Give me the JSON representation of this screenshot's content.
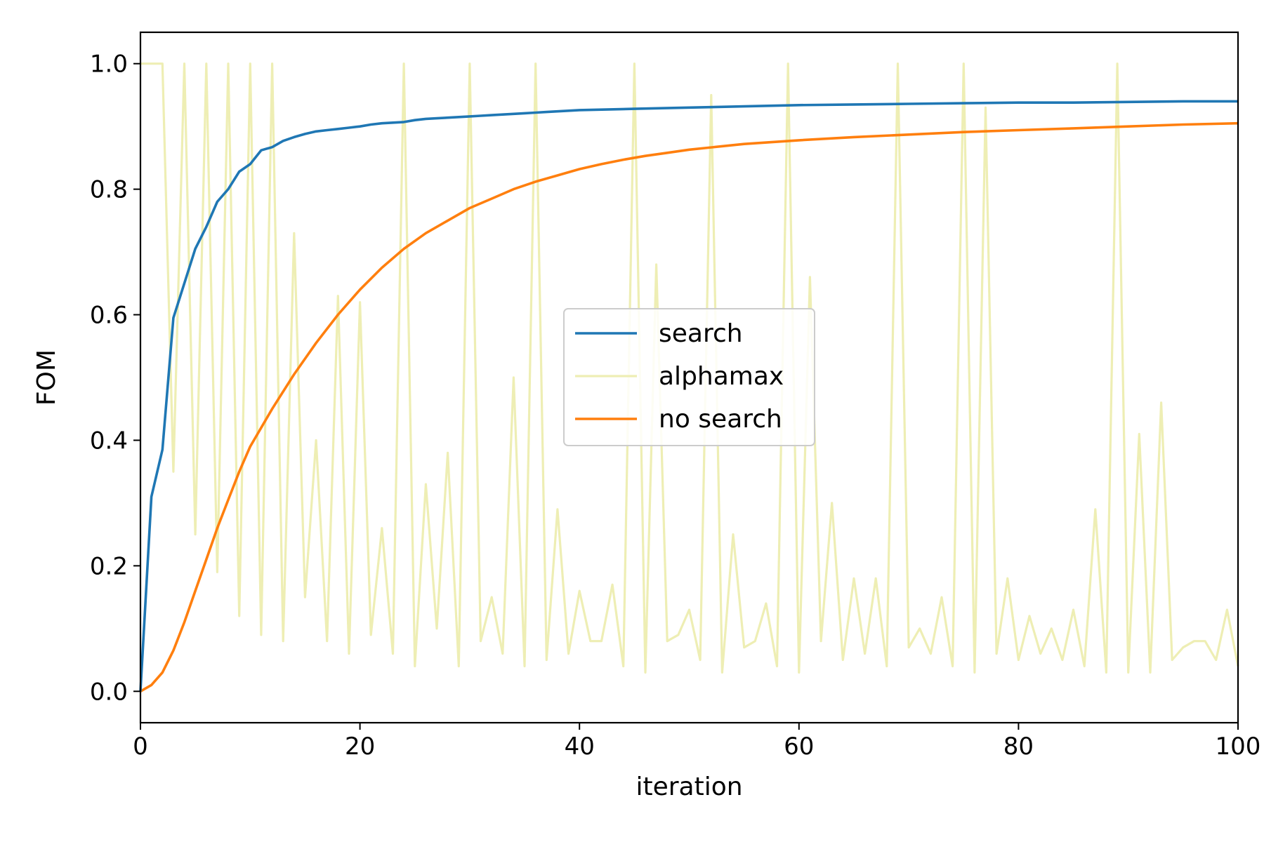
{
  "chart_data": {
    "type": "line",
    "title": "",
    "xlabel": "iteration",
    "ylabel": "FOM",
    "xlim": [
      0,
      100
    ],
    "ylim": [
      -0.05,
      1.05
    ],
    "xticks": [
      0,
      20,
      40,
      60,
      80,
      100
    ],
    "yticks": [
      0.0,
      0.2,
      0.4,
      0.6,
      0.8,
      1.0
    ],
    "xtick_labels": [
      "0",
      "20",
      "40",
      "60",
      "80",
      "100"
    ],
    "ytick_labels": [
      "0.0",
      "0.2",
      "0.4",
      "0.6",
      "0.8",
      "1.0"
    ],
    "grid": false,
    "legend_position": "center",
    "series": [
      {
        "name": "search",
        "color": "#1f77b4",
        "x": [
          0,
          1,
          2,
          3,
          4,
          5,
          6,
          7,
          8,
          9,
          10,
          11,
          12,
          13,
          14,
          15,
          16,
          17,
          18,
          19,
          20,
          21,
          22,
          23,
          24,
          25,
          26,
          27,
          28,
          29,
          30,
          31,
          32,
          33,
          34,
          35,
          36,
          37,
          38,
          39,
          40,
          45,
          50,
          55,
          60,
          65,
          70,
          75,
          80,
          85,
          90,
          95,
          100
        ],
        "y": [
          0.0,
          0.31,
          0.385,
          0.595,
          0.65,
          0.705,
          0.74,
          0.78,
          0.8,
          0.828,
          0.84,
          0.862,
          0.867,
          0.877,
          0.883,
          0.888,
          0.892,
          0.894,
          0.896,
          0.898,
          0.9,
          0.903,
          0.905,
          0.906,
          0.907,
          0.91,
          0.912,
          0.913,
          0.914,
          0.915,
          0.916,
          0.917,
          0.918,
          0.919,
          0.92,
          0.921,
          0.922,
          0.923,
          0.924,
          0.925,
          0.926,
          0.928,
          0.93,
          0.932,
          0.934,
          0.935,
          0.936,
          0.937,
          0.938,
          0.938,
          0.939,
          0.94,
          0.94
        ]
      },
      {
        "name": "alphamax",
        "color": "#eeeeb4",
        "x": [
          0,
          1,
          2,
          3,
          4,
          5,
          6,
          7,
          8,
          9,
          10,
          11,
          12,
          13,
          14,
          15,
          16,
          17,
          18,
          19,
          20,
          21,
          22,
          23,
          24,
          25,
          26,
          27,
          28,
          29,
          30,
          31,
          32,
          33,
          34,
          35,
          36,
          37,
          38,
          39,
          40,
          41,
          42,
          43,
          44,
          45,
          46,
          47,
          48,
          49,
          50,
          51,
          52,
          53,
          54,
          55,
          56,
          57,
          58,
          59,
          60,
          61,
          62,
          63,
          64,
          65,
          66,
          67,
          68,
          69,
          70,
          71,
          72,
          73,
          74,
          75,
          76,
          77,
          78,
          79,
          80,
          81,
          82,
          83,
          84,
          85,
          86,
          87,
          88,
          89,
          90,
          91,
          92,
          93,
          94,
          95,
          96,
          97,
          98,
          99,
          100
        ],
        "y": [
          1.0,
          1.0,
          1.0,
          0.35,
          1.0,
          0.25,
          1.0,
          0.19,
          1.0,
          0.12,
          1.0,
          0.09,
          1.0,
          0.08,
          0.73,
          0.15,
          0.4,
          0.08,
          0.63,
          0.06,
          0.62,
          0.09,
          0.26,
          0.06,
          1.0,
          0.04,
          0.33,
          0.1,
          0.38,
          0.04,
          1.0,
          0.08,
          0.15,
          0.06,
          0.5,
          0.04,
          1.0,
          0.05,
          0.29,
          0.06,
          0.16,
          0.08,
          0.08,
          0.17,
          0.04,
          1.0,
          0.03,
          0.68,
          0.08,
          0.09,
          0.13,
          0.05,
          0.95,
          0.03,
          0.25,
          0.07,
          0.08,
          0.14,
          0.04,
          1.0,
          0.03,
          0.66,
          0.08,
          0.3,
          0.05,
          0.18,
          0.06,
          0.18,
          0.04,
          1.0,
          0.07,
          0.1,
          0.06,
          0.15,
          0.04,
          1.0,
          0.03,
          0.93,
          0.06,
          0.18,
          0.05,
          0.12,
          0.06,
          0.1,
          0.05,
          0.13,
          0.04,
          0.29,
          0.03,
          1.0,
          0.03,
          0.41,
          0.03,
          0.46,
          0.05,
          0.07,
          0.08,
          0.08,
          0.05,
          0.13,
          0.04
        ]
      },
      {
        "name": "no search",
        "color": "#ff7f0e",
        "x": [
          0,
          1,
          2,
          3,
          4,
          5,
          6,
          7,
          8,
          9,
          10,
          12,
          14,
          16,
          18,
          20,
          22,
          24,
          26,
          28,
          30,
          32,
          34,
          36,
          38,
          40,
          42,
          44,
          46,
          48,
          50,
          55,
          60,
          65,
          70,
          75,
          80,
          85,
          90,
          95,
          100
        ],
        "y": [
          0.0,
          0.01,
          0.03,
          0.065,
          0.11,
          0.16,
          0.21,
          0.26,
          0.305,
          0.35,
          0.39,
          0.45,
          0.505,
          0.555,
          0.6,
          0.64,
          0.675,
          0.705,
          0.73,
          0.75,
          0.77,
          0.785,
          0.8,
          0.812,
          0.822,
          0.832,
          0.84,
          0.847,
          0.853,
          0.858,
          0.863,
          0.872,
          0.878,
          0.883,
          0.887,
          0.891,
          0.894,
          0.897,
          0.9,
          0.903,
          0.905
        ]
      }
    ]
  }
}
